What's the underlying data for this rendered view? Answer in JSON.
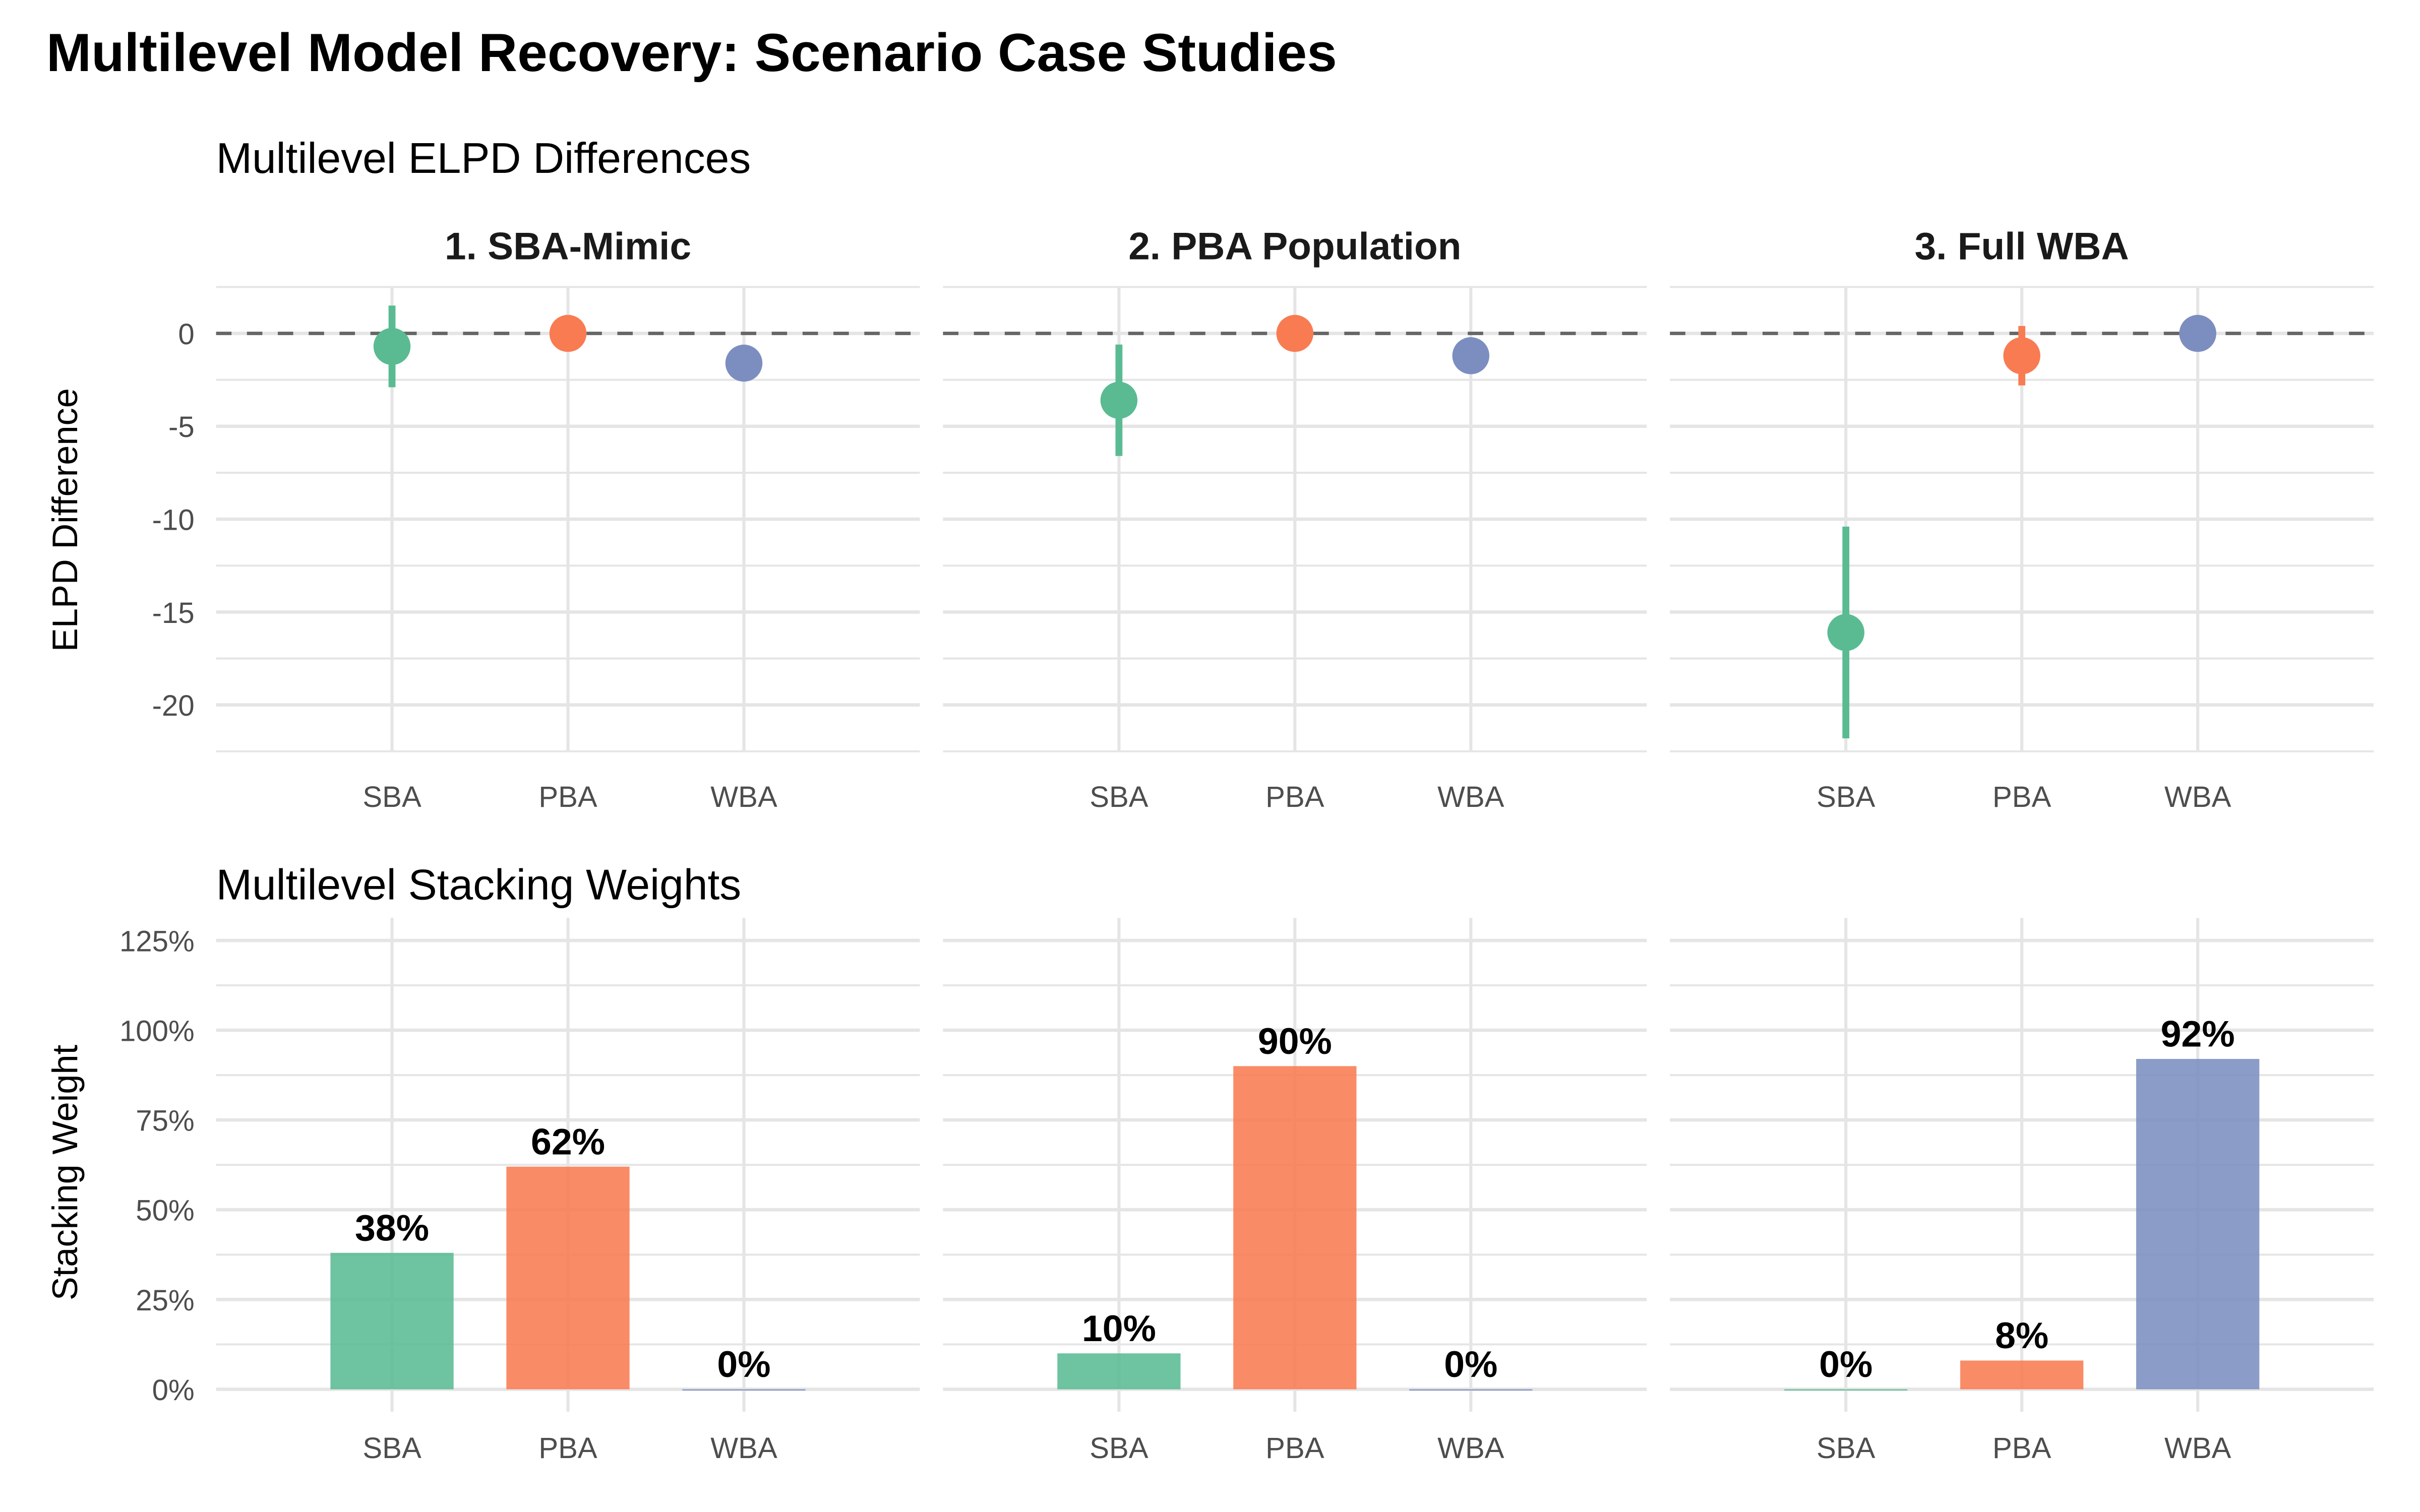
{
  "title": "Multilevel Model Recovery: Scenario Case Studies",
  "colors": {
    "SBA": "#5ABB93",
    "PBA": "#F97B52",
    "WBA": "#7C8EC0"
  },
  "chart_data": [
    {
      "type": "scatter",
      "subtitle": "Multilevel ELPD Differences",
      "ylabel": "ELPD Difference",
      "xlabel": "",
      "ylim": [
        -22.5,
        2.5
      ],
      "yticks": [
        0,
        -5,
        -10,
        -15,
        -20
      ],
      "ytick_labels": [
        "0",
        "-5",
        "-10",
        "-15",
        "-20"
      ],
      "reference_line": 0,
      "grid": true,
      "categories": [
        "SBA",
        "PBA",
        "WBA"
      ],
      "facets": [
        {
          "label": "1. SBA-Mimic",
          "points": [
            {
              "model": "SBA",
              "value": -0.7,
              "lower": -2.9,
              "upper": 1.5
            },
            {
              "model": "PBA",
              "value": 0.0,
              "lower": null,
              "upper": null
            },
            {
              "model": "WBA",
              "value": -1.6,
              "lower": null,
              "upper": null
            }
          ]
        },
        {
          "label": "2. PBA Population",
          "points": [
            {
              "model": "SBA",
              "value": -3.6,
              "lower": -6.6,
              "upper": -0.6
            },
            {
              "model": "PBA",
              "value": 0.0,
              "lower": null,
              "upper": null
            },
            {
              "model": "WBA",
              "value": -1.2,
              "lower": null,
              "upper": null
            }
          ]
        },
        {
          "label": "3. Full WBA",
          "points": [
            {
              "model": "SBA",
              "value": -16.1,
              "lower": -21.8,
              "upper": -10.4
            },
            {
              "model": "PBA",
              "value": -1.2,
              "lower": -2.8,
              "upper": 0.4
            },
            {
              "model": "WBA",
              "value": 0.0,
              "lower": null,
              "upper": null
            }
          ]
        }
      ]
    },
    {
      "type": "bar",
      "subtitle": "Multilevel Stacking Weights",
      "ylabel": "Stacking Weight",
      "xlabel": "",
      "ylim": [
        0,
        1.25
      ],
      "yticks": [
        0,
        0.25,
        0.5,
        0.75,
        1.0,
        1.25
      ],
      "ytick_labels": [
        "0%",
        "25%",
        "50%",
        "75%",
        "100%",
        "125%"
      ],
      "grid": true,
      "categories": [
        "SBA",
        "PBA",
        "WBA"
      ],
      "facets": [
        {
          "label": "1. SBA-Mimic",
          "values": [
            0.38,
            0.62,
            0.0
          ],
          "labels": [
            "38%",
            "62%",
            "0%"
          ]
        },
        {
          "label": "2. PBA Population",
          "values": [
            0.1,
            0.9,
            0.0
          ],
          "labels": [
            "10%",
            "90%",
            "0%"
          ]
        },
        {
          "label": "3. Full WBA",
          "values": [
            0.0,
            0.08,
            0.92
          ],
          "labels": [
            "0%",
            "8%",
            "92%"
          ]
        }
      ]
    }
  ]
}
